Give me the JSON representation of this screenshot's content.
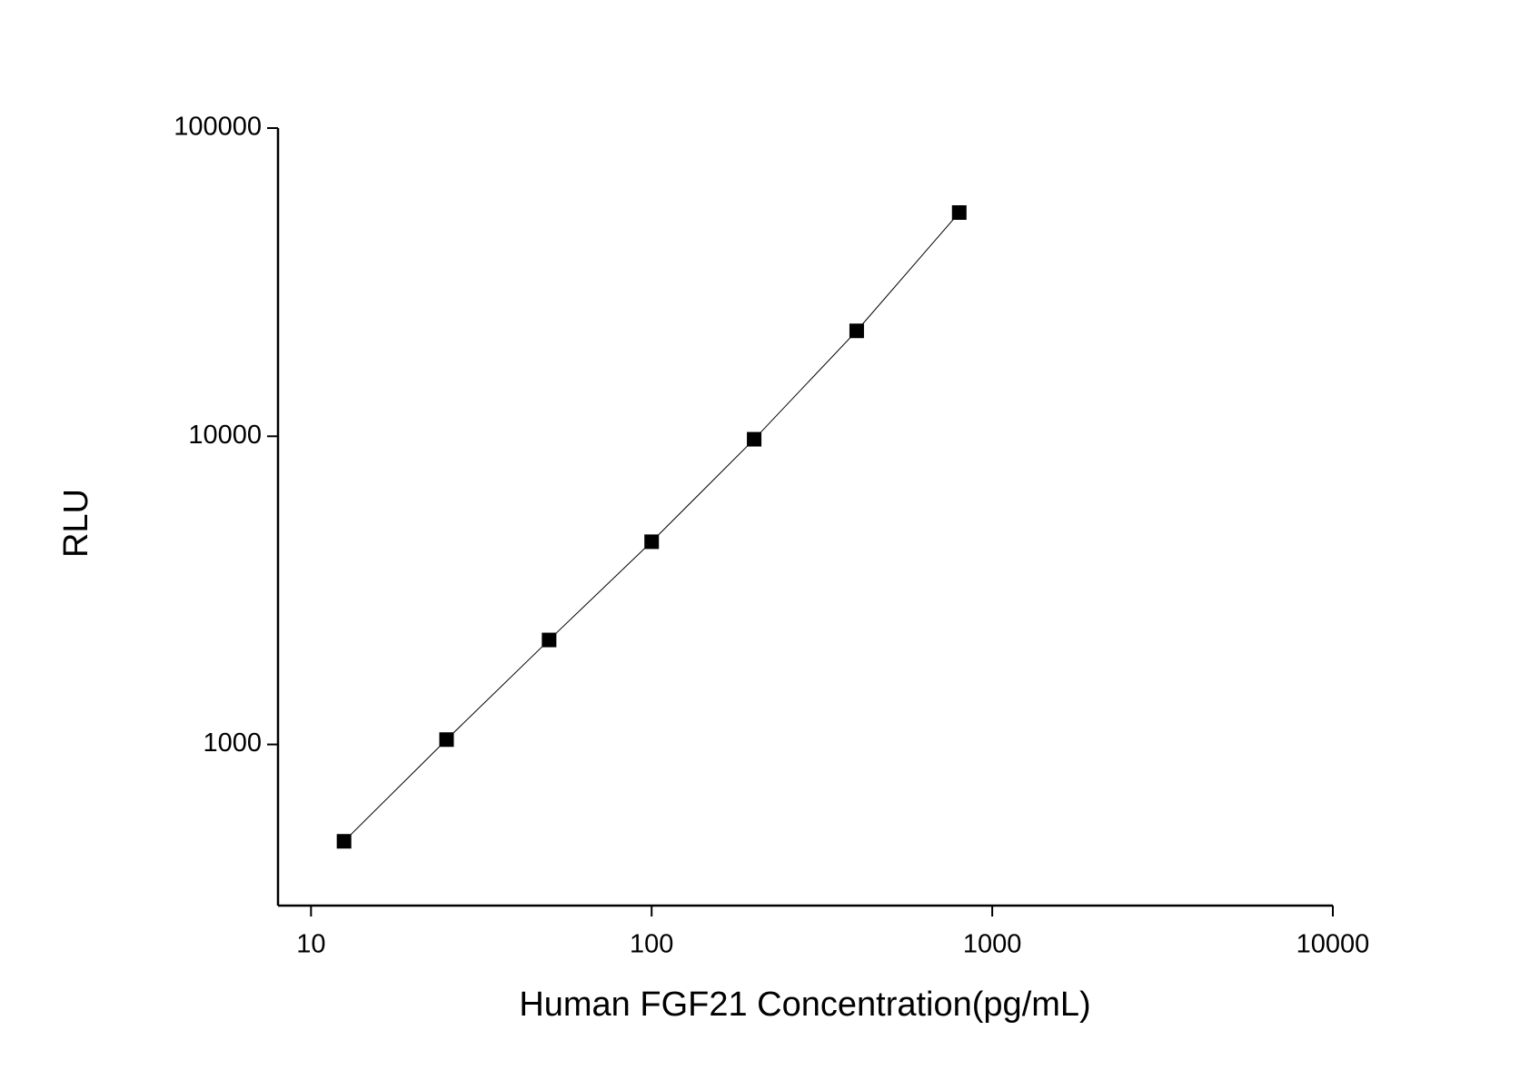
{
  "chart_data": {
    "type": "line",
    "x_label": "Human FGF21 Concentration(pg/mL)",
    "y_label": "RLU",
    "x": [
      12.5,
      25,
      50,
      100,
      200,
      400,
      800
    ],
    "series": [
      {
        "color": "#000000",
        "values": [
          485,
          1037,
          2183,
          4548,
          9780,
          21980,
          53200
        ]
      }
    ],
    "x_log": true,
    "y_log": true,
    "xlim": [
      8,
      10000
    ],
    "ylim": [
      300,
      100000
    ],
    "xticks": [
      10,
      100,
      1000,
      10000
    ],
    "yticks": [
      1000,
      10000,
      100000
    ],
    "grid": false
  }
}
